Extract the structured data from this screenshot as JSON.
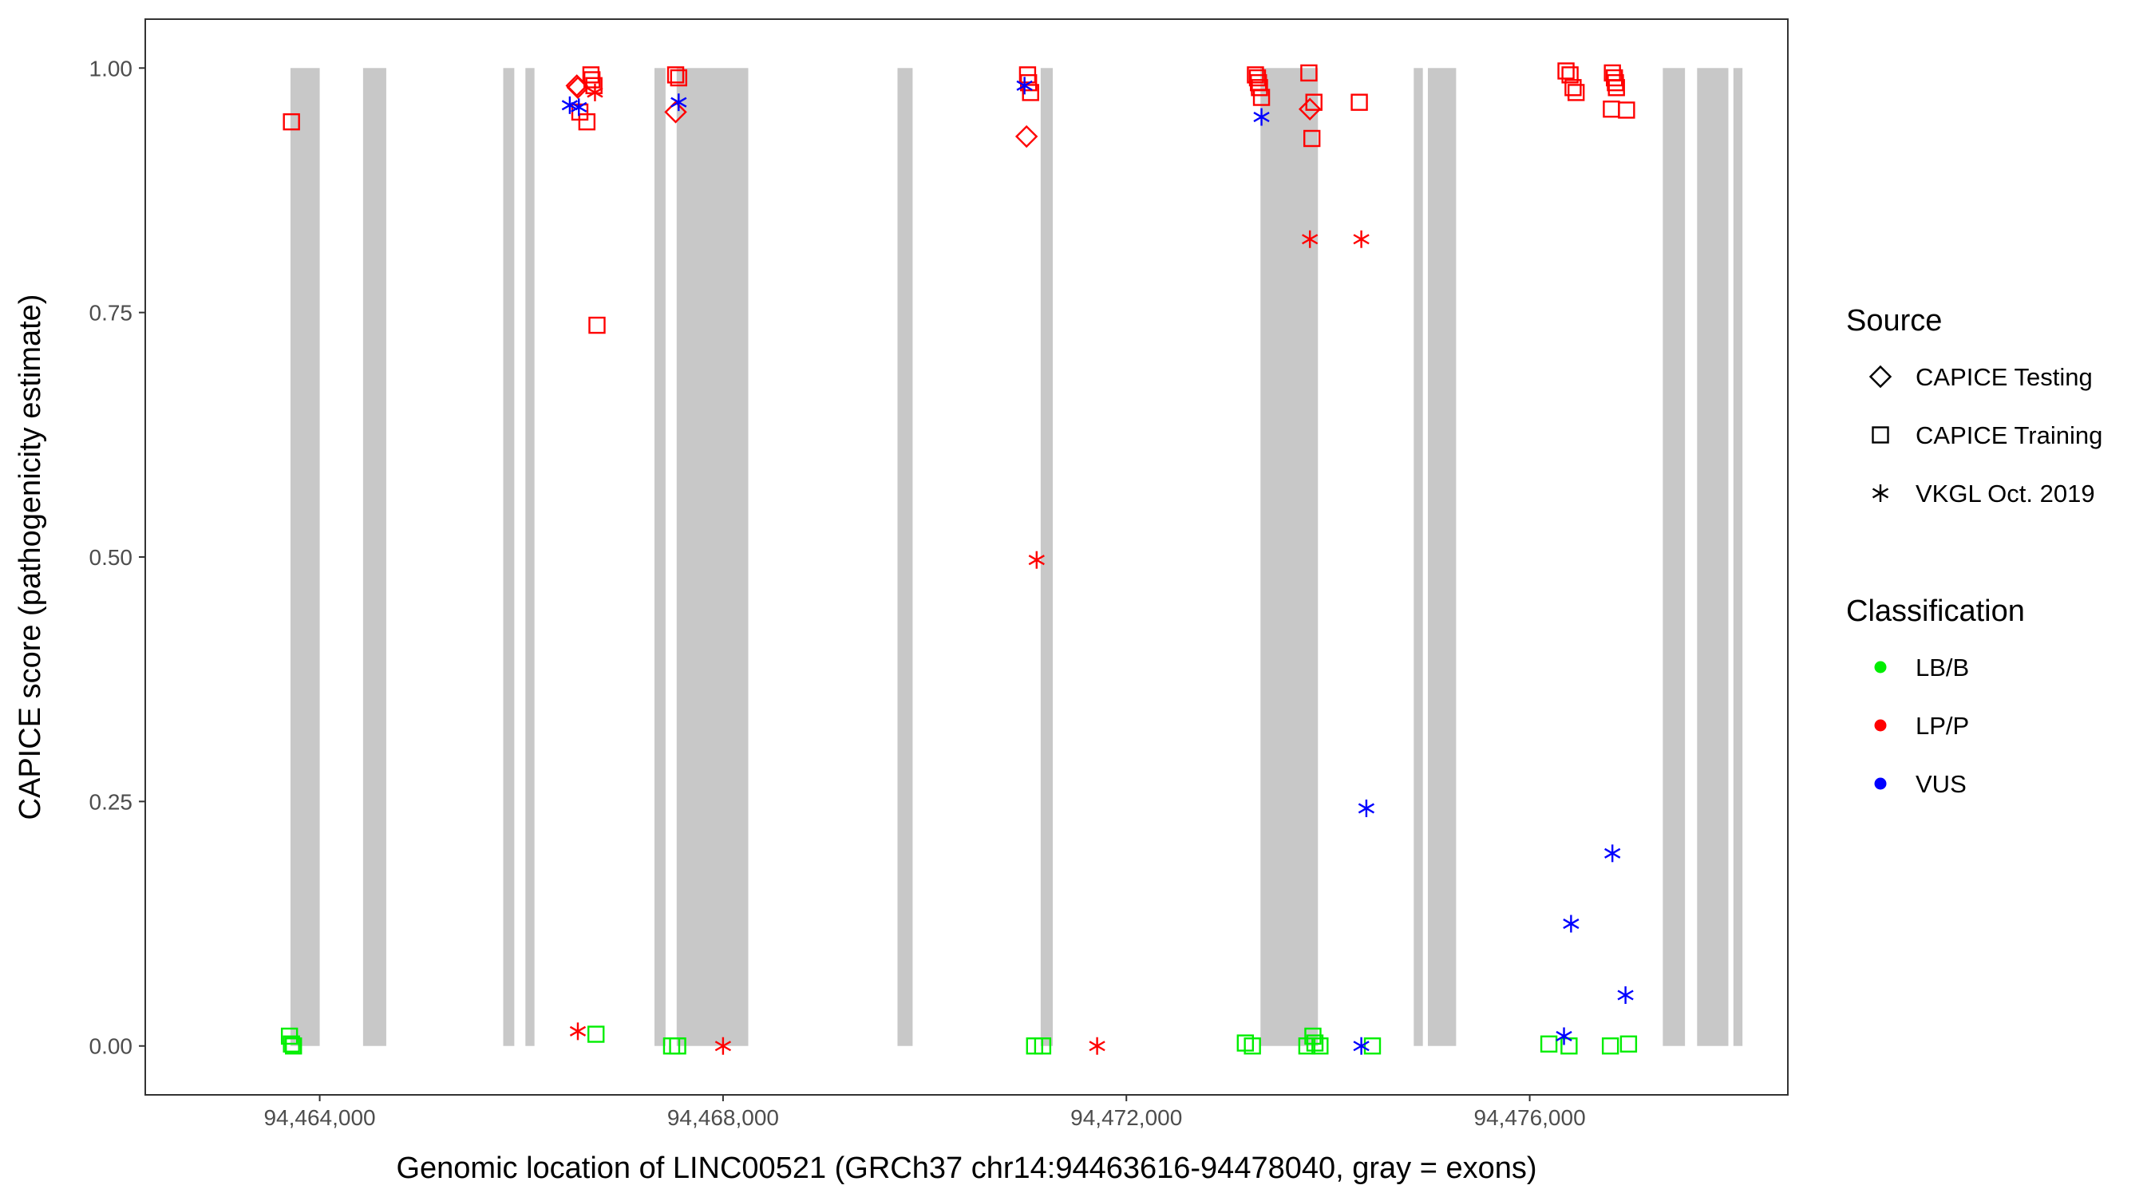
{
  "chart_data": {
    "type": "scatter",
    "title": "",
    "xlabel": "Genomic location of LINC00521 (GRCh37 chr14:94463616-94478040, gray = exons)",
    "ylabel": "CAPICE score (pathogenicity estimate)",
    "xlim": [
      94462270,
      94478560
    ],
    "ylim": [
      -0.05,
      1.05
    ],
    "x_ticks": [
      94464000,
      94468000,
      94472000,
      94476000
    ],
    "x_tick_labels": [
      "94,464,000",
      "94,468,000",
      "94,472,000",
      "94,476,000"
    ],
    "y_ticks": [
      0.0,
      0.25,
      0.5,
      0.75,
      1.0
    ],
    "y_tick_labels": [
      "0.00",
      "0.25",
      "0.50",
      "0.75",
      "1.00"
    ],
    "grid": false,
    "exons": [
      [
        94463710,
        94464000
      ],
      [
        94464430,
        94464660
      ],
      [
        94465820,
        94465930
      ],
      [
        94466040,
        94466130
      ],
      [
        94467320,
        94467430
      ],
      [
        94467540,
        94468250
      ],
      [
        94469730,
        94469880
      ],
      [
        94471150,
        94471270
      ],
      [
        94473330,
        94473900
      ],
      [
        94474850,
        94474940
      ],
      [
        94474990,
        94475270
      ],
      [
        94477320,
        94477540
      ],
      [
        94477660,
        94477970
      ],
      [
        94478020,
        94478110
      ]
    ],
    "colors": {
      "LB/B": "#00ee00",
      "LP/P": "#ff0000",
      "VUS": "#0000ff",
      "exon": "#c8c8c8"
    },
    "legend": {
      "placement": "right",
      "source_title": "Source",
      "source_items": [
        {
          "label": "CAPICE Testing",
          "shape": "diamond"
        },
        {
          "label": "CAPICE Training",
          "shape": "square"
        },
        {
          "label": "VKGL Oct. 2019",
          "shape": "asterisk"
        }
      ],
      "class_title": "Classification",
      "class_items": [
        {
          "label": "LB/B",
          "color": "#00ee00"
        },
        {
          "label": "LP/P",
          "color": "#ff0000"
        },
        {
          "label": "VUS",
          "color": "#0000ff"
        }
      ]
    },
    "series": [
      {
        "source": "CAPICE Testing",
        "shape": "diamond",
        "class": "LP/P",
        "points": [
          [
            94466550,
            0.982
          ],
          [
            94466560,
            0.98
          ],
          [
            94467530,
            0.955
          ],
          [
            94471010,
            0.93
          ],
          [
            94473820,
            0.958
          ]
        ]
      },
      {
        "source": "CAPICE Training",
        "shape": "square",
        "class": "LP/P",
        "points": [
          [
            94463720,
            0.945
          ],
          [
            94466580,
            0.955
          ],
          [
            94466650,
            0.945
          ],
          [
            94466690,
            0.993
          ],
          [
            94466700,
            0.988
          ],
          [
            94466720,
            0.982
          ],
          [
            94466750,
            0.737
          ],
          [
            94467530,
            0.993
          ],
          [
            94467560,
            0.99
          ],
          [
            94471020,
            0.993
          ],
          [
            94471030,
            0.985
          ],
          [
            94471050,
            0.975
          ],
          [
            94473280,
            0.993
          ],
          [
            94473300,
            0.99
          ],
          [
            94473310,
            0.985
          ],
          [
            94473320,
            0.98
          ],
          [
            94473340,
            0.97
          ],
          [
            94473810,
            0.995
          ],
          [
            94473840,
            0.928
          ],
          [
            94473860,
            0.965
          ],
          [
            94474310,
            0.965
          ],
          [
            94476360,
            0.997
          ],
          [
            94476400,
            0.993
          ],
          [
            94476430,
            0.98
          ],
          [
            94476460,
            0.975
          ],
          [
            94476820,
            0.995
          ],
          [
            94476840,
            0.99
          ],
          [
            94476850,
            0.985
          ],
          [
            94476860,
            0.98
          ],
          [
            94476810,
            0.958
          ],
          [
            94476960,
            0.957
          ]
        ]
      },
      {
        "source": "CAPICE Training",
        "shape": "square",
        "class": "LB/B",
        "points": [
          [
            94463700,
            0.01
          ],
          [
            94463720,
            0.002
          ],
          [
            94463740,
            0.0
          ],
          [
            94466740,
            0.012
          ],
          [
            94467490,
            0.0
          ],
          [
            94467550,
            0.0
          ],
          [
            94471090,
            0.0
          ],
          [
            94471170,
            0.0
          ],
          [
            94473180,
            0.003
          ],
          [
            94473250,
            0.0
          ],
          [
            94473790,
            0.0
          ],
          [
            94473850,
            0.01
          ],
          [
            94473870,
            0.003
          ],
          [
            94473920,
            0.0
          ],
          [
            94474440,
            0.0
          ],
          [
            94476190,
            0.002
          ],
          [
            94476390,
            0.0
          ],
          [
            94476800,
            0.0
          ],
          [
            94476980,
            0.002
          ]
        ]
      },
      {
        "source": "VKGL Oct. 2019",
        "shape": "asterisk",
        "class": "LP/P",
        "points": [
          [
            94466730,
            0.975
          ],
          [
            94466560,
            0.015
          ],
          [
            94468000,
            0.0
          ],
          [
            94471110,
            0.497
          ],
          [
            94471710,
            0.0
          ],
          [
            94473820,
            0.825
          ],
          [
            94474330,
            0.825
          ]
        ]
      },
      {
        "source": "VKGL Oct. 2019",
        "shape": "asterisk",
        "class": "VUS",
        "points": [
          [
            94466480,
            0.962
          ],
          [
            94466570,
            0.96
          ],
          [
            94467560,
            0.965
          ],
          [
            94470990,
            0.982
          ],
          [
            94473340,
            0.95
          ],
          [
            94474330,
            0.0
          ],
          [
            94474380,
            0.243
          ],
          [
            94476340,
            0.01
          ],
          [
            94476410,
            0.125
          ],
          [
            94476820,
            0.197
          ],
          [
            94476950,
            0.052
          ]
        ]
      }
    ]
  }
}
